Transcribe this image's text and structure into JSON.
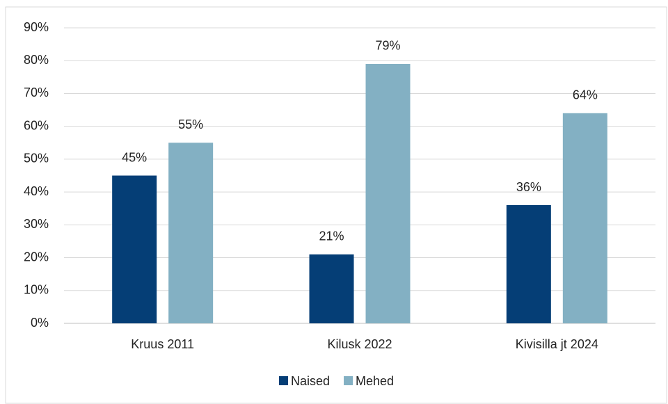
{
  "chart_data": {
    "type": "bar",
    "categories": [
      "Kruus 2011",
      "Kilusk 2022",
      "Kivisilla jt 2024"
    ],
    "series": [
      {
        "name": "Naised",
        "color": "#053e76",
        "values": [
          45,
          21,
          36
        ],
        "value_labels": [
          "45%",
          "21%",
          "36%"
        ]
      },
      {
        "name": "Mehed",
        "color": "#83b0c3",
        "values": [
          55,
          79,
          64
        ],
        "value_labels": [
          "55%",
          "79%",
          "64%"
        ]
      }
    ],
    "ylim": [
      0,
      90
    ],
    "yticks": [
      {
        "value": 0,
        "label": "0%"
      },
      {
        "value": 10,
        "label": "10%"
      },
      {
        "value": 20,
        "label": "20%"
      },
      {
        "value": 30,
        "label": "30%"
      },
      {
        "value": 40,
        "label": "40%"
      },
      {
        "value": 50,
        "label": "50%"
      },
      {
        "value": 60,
        "label": "60%"
      },
      {
        "value": 70,
        "label": "70%"
      },
      {
        "value": 80,
        "label": "80%"
      },
      {
        "value": 90,
        "label": "90%"
      }
    ],
    "grid": true,
    "legend": "bottom"
  }
}
